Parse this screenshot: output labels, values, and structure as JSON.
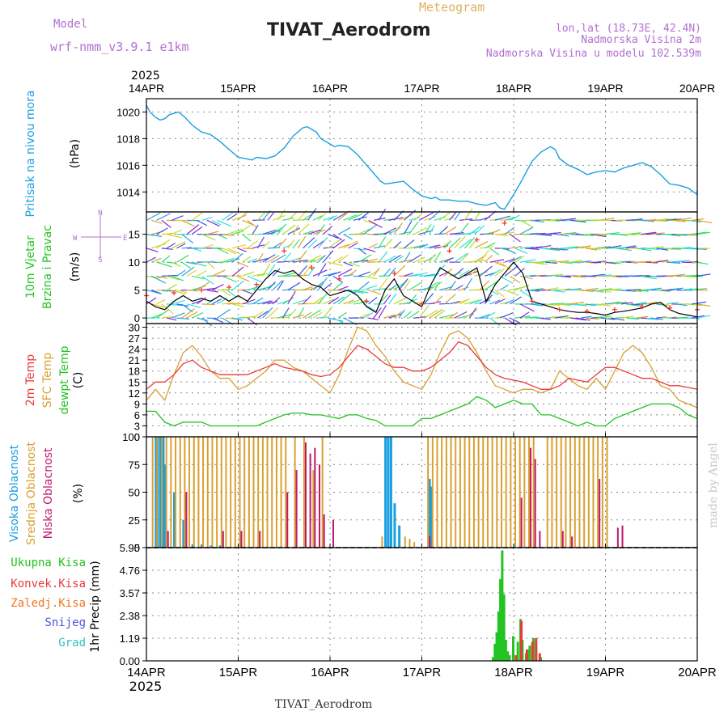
{
  "header": {
    "title": "TIVAT_Aerodrom",
    "subtitle": "Meteogram",
    "model_label": "Model",
    "model_name": "wrf-nmm_v3.9.1 e1km",
    "lonlat": "lon,lat (18.73E, 42.4N)",
    "elevation": "Nadmorska Visina 2m",
    "model_elevation": "Nadmorska Visina u modelu 102.539m",
    "year_top": "2025",
    "year_bottom": "2025",
    "footer_station": "TIVAT_Aerodrom",
    "credit": "made by Angel"
  },
  "colors": {
    "pressure": "#1a9fe0",
    "wind_speed": "#000000",
    "gust": "#ff3333",
    "temp2m": "#e83a3a",
    "sfc_temp": "#d9a030",
    "dewpoint": "#22c422",
    "cloud_high": "#1a9fe0",
    "cloud_mid": "#d9a030",
    "cloud_low": "#c0186a",
    "precip_total": "#22c422",
    "precip_conv": "#e83a3a",
    "wind_arrow_palette": [
      "#2ee0e0",
      "#2aa0e8",
      "#3b55e0",
      "#8a2ad8",
      "#2ee070",
      "#a8e030",
      "#e0d030",
      "#e0a030"
    ]
  },
  "time_axis": {
    "labels": [
      "14APR",
      "15APR",
      "16APR",
      "17APR",
      "18APR",
      "19APR",
      "20APR"
    ]
  },
  "panels": {
    "pressure": {
      "label": "Pritisak na nivou mora",
      "unit": "(hPa)"
    },
    "wind": {
      "label1": "10m Vjetar",
      "label2": "Brzina i Pravac",
      "unit": "(m/s)",
      "compass": {
        "n": "N",
        "s": "S",
        "e": "E",
        "w": "W"
      }
    },
    "temp": {
      "label1": "2m Temp",
      "label2": "SFC Temp",
      "label3": "dewpt Temp",
      "unit": "(C)"
    },
    "cloud": {
      "label1": "Visoka Oblacnost",
      "label2": "Srednja Oblacnost",
      "label3": "Niska Oblacnost",
      "unit": "(%)"
    },
    "precip": {
      "labels": [
        "Ukupna Kisa",
        "Konvek.Kisa",
        "Zaledj.Kisa",
        "Snijeg",
        "Grad"
      ],
      "label_colors": [
        "#22c422",
        "#e83a3a",
        "#f07820",
        "#5050e0",
        "#2ec0c0"
      ],
      "unit": "1hr Precip (mm)"
    }
  },
  "chart_data": [
    {
      "type": "line",
      "title": "Pritisak na nivou mora",
      "ylabel": "(hPa)",
      "x_unit": "days since 14APR 00Z",
      "ylim": [
        1012.5,
        1021
      ],
      "yticks": [
        1014,
        1016,
        1018,
        1020
      ],
      "x": [
        0,
        0.04,
        0.1,
        0.15,
        0.2,
        0.25,
        0.3,
        0.35,
        0.42,
        0.5,
        0.6,
        0.7,
        0.8,
        0.9,
        1.0,
        1.08,
        1.15,
        1.2,
        1.3,
        1.4,
        1.5,
        1.6,
        1.7,
        1.75,
        1.85,
        1.9,
        2.0,
        2.05,
        2.1,
        2.2,
        2.3,
        2.4,
        2.5,
        2.55,
        2.6,
        2.7,
        2.8,
        2.9,
        3.0,
        3.1,
        3.15,
        3.2,
        3.3,
        3.4,
        3.5,
        3.6,
        3.7,
        3.8,
        3.85,
        3.9,
        4.0,
        4.1,
        4.2,
        4.3,
        4.4,
        4.45,
        4.5,
        4.6,
        4.7,
        4.8,
        4.9,
        5.0,
        5.1,
        5.2,
        5.3,
        5.4,
        5.5,
        5.6,
        5.7,
        5.8,
        5.9,
        6.0
      ],
      "series": [
        {
          "values": [
            1020.5,
            1020.0,
            1019.6,
            1019.4,
            1019.5,
            1019.8,
            1019.9,
            1020.0,
            1019.6,
            1019.0,
            1018.5,
            1018.3,
            1017.8,
            1017.2,
            1016.6,
            1016.5,
            1016.4,
            1016.6,
            1016.5,
            1016.7,
            1017.3,
            1018.2,
            1018.8,
            1018.9,
            1018.5,
            1018.0,
            1017.6,
            1017.4,
            1017.5,
            1017.4,
            1016.8,
            1016.0,
            1015.2,
            1014.8,
            1014.6,
            1014.7,
            1014.8,
            1014.2,
            1013.7,
            1013.5,
            1013.6,
            1013.4,
            1013.4,
            1013.3,
            1013.3,
            1013.1,
            1013.0,
            1013.2,
            1012.8,
            1012.7,
            1013.8,
            1015.0,
            1016.3,
            1017.0,
            1017.4,
            1017.2,
            1016.5,
            1016.0,
            1015.7,
            1015.3,
            1015.5,
            1015.6,
            1015.5,
            1015.8,
            1016.0,
            1016.2,
            1015.9,
            1015.3,
            1014.6,
            1014.5,
            1014.3,
            1013.8
          ]
        }
      ]
    },
    {
      "type": "line",
      "title": "10m Vjetar Brzina i Pravac",
      "ylabel": "(m/s)",
      "x_unit": "days since 14APR 00Z",
      "ylim": [
        -1,
        19
      ],
      "yticks": [
        0,
        5,
        10,
        15
      ],
      "series": [
        {
          "name": "speed",
          "x": [
            0,
            0.1,
            0.2,
            0.3,
            0.4,
            0.5,
            0.6,
            0.7,
            0.8,
            0.9,
            1.0,
            1.1,
            1.2,
            1.3,
            1.4,
            1.5,
            1.6,
            1.7,
            1.8,
            1.9,
            2.0,
            2.1,
            2.2,
            2.3,
            2.4,
            2.5,
            2.55,
            2.6,
            2.7,
            2.8,
            2.9,
            3.0,
            3.1,
            3.2,
            3.3,
            3.4,
            3.5,
            3.6,
            3.7,
            3.8,
            3.9,
            4.0,
            4.1,
            4.2,
            4.3,
            4.4,
            4.5,
            4.6,
            4.7,
            4.8,
            4.9,
            5.0,
            5.1,
            5.2,
            5.3,
            5.4,
            5.5,
            5.6,
            5.7,
            5.8,
            5.9,
            6.0
          ],
          "values": [
            3,
            2,
            1.5,
            3,
            4,
            3,
            3.5,
            3,
            4,
            3,
            4,
            3,
            5,
            7,
            8.5,
            8,
            8.5,
            7,
            6,
            5.5,
            4,
            4.5,
            5,
            4,
            2,
            1,
            3,
            5,
            7,
            4,
            3,
            2,
            6,
            9,
            8,
            7,
            8,
            9,
            3,
            6,
            8,
            10,
            8,
            3,
            2.5,
            2,
            1.5,
            1.2,
            1,
            1,
            0.8,
            0.5,
            1,
            1.2,
            1.5,
            1.8,
            2.5,
            2.8,
            1.5,
            0.8,
            0.5,
            0.2
          ]
        },
        {
          "name": "gust",
          "x": [
            0,
            0.3,
            0.6,
            0.9,
            1.2,
            1.5,
            1.8,
            2.1,
            2.4,
            2.7,
            3.0,
            3.3,
            3.6,
            3.9,
            4.2,
            4.5,
            4.8,
            5.1,
            5.4,
            5.7,
            6.0
          ],
          "values": [
            4,
            4.5,
            5,
            5.5,
            6,
            12,
            9,
            7,
            3,
            8,
            2.5,
            12,
            14,
            17,
            3,
            1.5,
            1.2,
            1.5,
            2,
            1.8,
            1.5
          ]
        }
      ]
    },
    {
      "type": "line",
      "title": "2m Temp / SFC Temp / dewpt Temp",
      "ylabel": "(C)",
      "x_unit": "days since 14APR 00Z",
      "ylim": [
        0,
        31
      ],
      "yticks": [
        0,
        3,
        6,
        9,
        12,
        15,
        18,
        21,
        24,
        27,
        30
      ],
      "x": [
        0,
        0.1,
        0.2,
        0.3,
        0.4,
        0.5,
        0.6,
        0.7,
        0.8,
        0.9,
        1.0,
        1.1,
        1.2,
        1.3,
        1.4,
        1.5,
        1.6,
        1.7,
        1.8,
        1.9,
        2.0,
        2.1,
        2.2,
        2.3,
        2.4,
        2.5,
        2.6,
        2.7,
        2.8,
        2.9,
        3.0,
        3.1,
        3.2,
        3.3,
        3.4,
        3.5,
        3.6,
        3.7,
        3.8,
        3.9,
        4.0,
        4.1,
        4.2,
        4.3,
        4.4,
        4.5,
        4.6,
        4.7,
        4.8,
        4.9,
        5.0,
        5.1,
        5.2,
        5.3,
        5.4,
        5.5,
        5.6,
        5.7,
        5.8,
        5.9,
        6.0
      ],
      "series": [
        {
          "name": "2m Temp",
          "values": [
            13,
            15,
            15,
            17,
            20,
            21,
            19,
            18,
            17,
            17,
            17,
            17,
            18,
            19,
            20,
            19,
            18.5,
            18,
            17,
            16.5,
            17,
            19,
            22,
            25,
            24,
            22,
            20,
            19,
            19,
            18,
            18,
            19,
            21,
            23,
            26,
            25,
            22,
            19,
            17,
            16,
            15.5,
            15,
            14,
            13,
            13,
            14,
            16,
            15.5,
            15,
            17,
            19,
            19,
            18,
            17,
            16,
            16,
            15,
            14,
            14,
            13.5,
            13
          ]
        },
        {
          "name": "SFC Temp",
          "values": [
            10,
            13,
            10,
            17,
            23,
            25,
            22,
            18,
            16,
            16,
            13,
            14,
            16,
            18,
            21,
            21,
            19,
            18,
            16,
            14,
            12,
            17,
            24,
            30,
            29,
            25,
            22,
            18,
            15,
            14,
            13,
            17,
            23,
            28,
            29,
            27,
            23,
            18,
            14,
            13,
            12,
            13,
            13,
            12,
            13,
            18,
            16,
            14,
            13,
            16,
            13,
            18,
            23,
            25,
            23,
            19,
            14,
            13,
            10,
            9,
            8
          ]
        },
        {
          "name": "dewpt Temp",
          "values": [
            7,
            7,
            4,
            3,
            4,
            4,
            4,
            3,
            3,
            3,
            3,
            3,
            3,
            4,
            5,
            6,
            6.5,
            6.5,
            6,
            6,
            5.5,
            5,
            6,
            6,
            5,
            4.5,
            3,
            3,
            3,
            3,
            5,
            5,
            6,
            7,
            8,
            9,
            11,
            10,
            8,
            9,
            10,
            9,
            9,
            6,
            6,
            5,
            4,
            3,
            4,
            3,
            3,
            5,
            6,
            7,
            8,
            9,
            9,
            9,
            8,
            6,
            5
          ]
        }
      ]
    },
    {
      "type": "bar",
      "title": "Visoka / Srednja / Niska Oblacnost",
      "ylabel": "(%)",
      "x_unit": "days since 14APR 00Z",
      "ylim": [
        0,
        100
      ],
      "yticks": [
        0,
        25,
        50,
        75,
        100
      ],
      "series": [
        {
          "name": "Visoka Oblacnost",
          "x": [
            0.1,
            0.12,
            0.15,
            0.18,
            0.2,
            0.3,
            0.4,
            0.5,
            0.6,
            0.7,
            0.8,
            2.6,
            2.63,
            2.66,
            2.7,
            2.75,
            3.08,
            3.1,
            4.0
          ],
          "values": [
            100,
            100,
            100,
            100,
            75,
            50,
            25,
            3,
            3,
            2,
            2,
            100,
            100,
            100,
            40,
            20,
            62,
            55,
            2
          ]
        },
        {
          "name": "Srednja Oblacnost",
          "x": [
            0.05,
            0.1,
            0.15,
            0.2,
            0.25,
            0.3,
            0.35,
            0.4,
            0.45,
            0.5,
            0.55,
            0.6,
            0.65,
            0.7,
            0.75,
            0.8,
            0.85,
            0.9,
            0.95,
            1.0,
            1.05,
            1.1,
            1.15,
            1.2,
            1.25,
            1.3,
            1.35,
            1.4,
            1.45,
            1.5,
            1.6,
            1.7,
            1.8,
            1.9,
            2.55,
            2.8,
            2.85,
            2.9,
            3.05,
            3.1,
            3.15,
            3.2,
            3.25,
            3.3,
            3.35,
            3.4,
            3.45,
            3.5,
            3.55,
            3.6,
            3.65,
            3.7,
            3.75,
            3.8,
            3.85,
            3.9,
            3.95,
            4.0,
            4.05,
            4.1,
            4.15,
            4.2,
            4.35,
            4.4,
            4.45,
            4.5,
            4.55,
            4.6,
            4.65,
            4.7,
            4.75,
            4.8,
            4.85,
            4.9,
            4.95,
            5.0
          ],
          "values": [
            100,
            100,
            100,
            100,
            100,
            100,
            100,
            100,
            100,
            100,
            100,
            100,
            100,
            100,
            100,
            100,
            100,
            100,
            100,
            100,
            100,
            100,
            100,
            100,
            100,
            100,
            100,
            100,
            100,
            100,
            100,
            100,
            70,
            100,
            10,
            10,
            8,
            5,
            100,
            100,
            100,
            100,
            100,
            100,
            100,
            100,
            100,
            100,
            100,
            100,
            100,
            100,
            100,
            100,
            100,
            100,
            100,
            100,
            100,
            100,
            100,
            100,
            100,
            100,
            100,
            100,
            100,
            100,
            100,
            100,
            100,
            100,
            100,
            100,
            100,
            100
          ]
        },
        {
          "name": "Niska Oblacnost",
          "x": [
            0.2,
            0.4,
            0.8,
            1.0,
            1.2,
            1.5,
            1.6,
            1.7,
            1.75,
            1.8,
            1.85,
            1.9,
            2.0,
            3.05,
            4.05,
            4.15,
            4.2,
            4.25,
            4.5,
            4.6,
            4.9,
            5.1,
            5.15
          ],
          "values": [
            15,
            50,
            15,
            15,
            15,
            50,
            70,
            95,
            85,
            90,
            75,
            30,
            25,
            10,
            45,
            90,
            80,
            15,
            15,
            10,
            62,
            18,
            20
          ]
        }
      ]
    },
    {
      "type": "bar",
      "title": "1hr Precip",
      "ylabel": "1hr Precip (mm)",
      "x_unit": "days since 14APR 00Z",
      "ylim": [
        0,
        5.95
      ],
      "yticks": [
        0,
        1.19,
        2.38,
        3.57,
        4.76,
        5.95
      ],
      "series": [
        {
          "name": "Ukupna Kisa",
          "x": [
            3.78,
            3.8,
            3.82,
            3.84,
            3.86,
            3.88,
            3.9,
            3.92,
            3.94,
            3.96,
            4.0,
            4.05,
            4.08,
            4.1,
            4.14,
            4.16,
            4.18,
            4.22,
            4.25,
            4.3
          ],
          "values": [
            0.2,
            0.9,
            1.5,
            2.6,
            4.3,
            5.8,
            3.5,
            1.1,
            0.5,
            0.3,
            1.3,
            1.0,
            2.2,
            1.1,
            0.4,
            0.6,
            0.8,
            1.2,
            0.9,
            0.2
          ]
        },
        {
          "name": "Konvek.Kisa",
          "x": [
            4.02,
            4.08,
            4.14,
            4.2,
            4.24,
            4.28
          ],
          "values": [
            0.3,
            2.1,
            0.6,
            1.0,
            1.2,
            0.4
          ]
        }
      ]
    }
  ]
}
